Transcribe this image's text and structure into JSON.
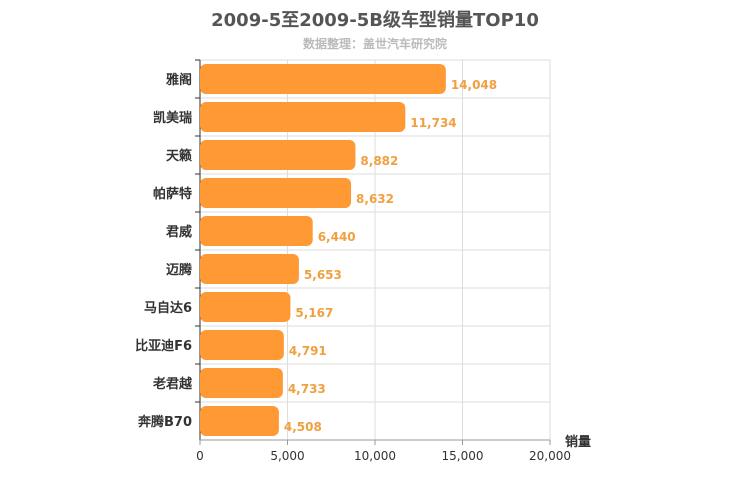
{
  "chart_data": {
    "type": "bar",
    "orientation": "horizontal",
    "title": "2009-5至2009-5B级车型销量TOP10",
    "subtitle": "数据整理：盖世汽车研究院",
    "categories": [
      "雅阁",
      "凯美瑞",
      "天籁",
      "帕萨特",
      "君威",
      "迈腾",
      "马自达6",
      "比亚迪F6",
      "老君越",
      "奔腾B70"
    ],
    "values": [
      14048,
      11734,
      8882,
      8632,
      6440,
      5653,
      5167,
      4791,
      4733,
      4508
    ],
    "value_labels": [
      "14,048",
      "11,734",
      "8,882",
      "8,632",
      "6,440",
      "5,653",
      "5,167",
      "4,791",
      "4,733",
      "4,508"
    ],
    "xlabel": "销量",
    "ylabel": "",
    "xlim": [
      0,
      20000
    ],
    "x_ticks": [
      0,
      5000,
      10000,
      15000,
      20000
    ],
    "x_tick_labels": [
      "0",
      "5,000",
      "10,000",
      "15,000",
      "20,000"
    ],
    "grid": true,
    "bar_color": "#ff9933",
    "label_color": "#f0a040"
  }
}
